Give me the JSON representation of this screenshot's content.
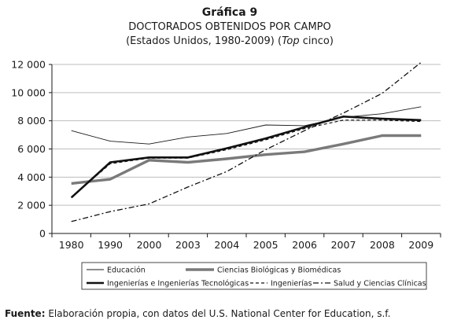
{
  "figure": {
    "number_label": "Gráfica 9",
    "title": "DOCTORADOS OBTENIDOS POR CAMPO",
    "subtitle_prefix": "(Estados Unidos, 1980-2009) (",
    "subtitle_italic": "Top",
    "subtitle_suffix": " cinco)",
    "source_label": "Fuente:",
    "source_text": " Elaboración propia, con datos del U.S. National Center for Education, s.f."
  },
  "chart_data": {
    "type": "line",
    "categories": [
      "1980",
      "1990",
      "2000",
      "2003",
      "2004",
      "2005",
      "2006",
      "2007",
      "2008",
      "2009"
    ],
    "ylim": [
      0,
      12000
    ],
    "yticks": [
      0,
      2000,
      4000,
      6000,
      8000,
      10000,
      12000
    ],
    "ytick_labels": [
      "0",
      "2 000",
      "4 000",
      "6 000",
      "8 000",
      "10 000",
      "12 000"
    ],
    "grid": "horizontal",
    "legend_placement": "bottom",
    "series": [
      {
        "name": "Educación",
        "values": [
          7300,
          6550,
          6350,
          6850,
          7100,
          7700,
          7650,
          8250,
          8500,
          9000
        ],
        "color": "#1a1a1a",
        "style": "thin-solid"
      },
      {
        "name": "Ciencias Biológicas y Biomédicas",
        "values": [
          3550,
          3850,
          5200,
          5050,
          5300,
          5600,
          5800,
          6350,
          6950,
          6950
        ],
        "color": "#7a7a7a",
        "style": "thick-gray"
      },
      {
        "name": "Ingenierías e Ingenierías Tecnológicas",
        "values": [
          2550,
          5050,
          5400,
          5400,
          6050,
          6750,
          7550,
          8300,
          8150,
          8050
        ],
        "color": "#111111",
        "style": "thick-solid"
      },
      {
        "name": "Ingenierías",
        "values": [
          2550,
          4950,
          5350,
          5350,
          5950,
          6650,
          7450,
          8050,
          8050,
          7950
        ],
        "color": "#111111",
        "style": "dashed"
      },
      {
        "name": "Salud y Ciencias Clínicas",
        "values": [
          850,
          1550,
          2100,
          3300,
          4400,
          5950,
          7300,
          8550,
          9950,
          12150
        ],
        "color": "#111111",
        "style": "dash-dot"
      }
    ]
  }
}
